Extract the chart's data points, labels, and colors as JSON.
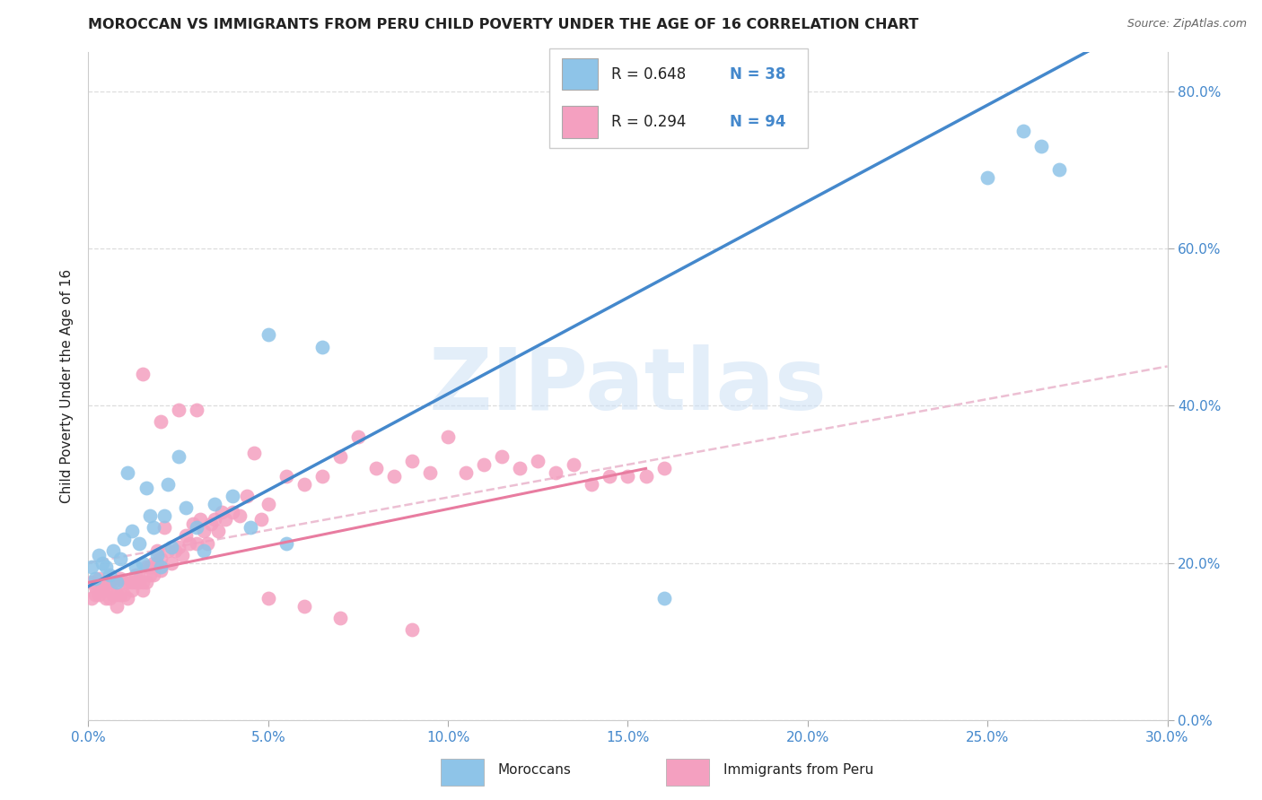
{
  "title": "MOROCCAN VS IMMIGRANTS FROM PERU CHILD POVERTY UNDER THE AGE OF 16 CORRELATION CHART",
  "source": "Source: ZipAtlas.com",
  "ylabel": "Child Poverty Under the Age of 16",
  "blue_color": "#8ec4e8",
  "pink_color": "#f4a0c0",
  "trendline_blue": "#4488cc",
  "trendline_pink": "#e87ca0",
  "trendline_dashed_color": "#e8b0c8",
  "watermark": "ZIPatlas",
  "watermark_color": "#cce0f5",
  "text_blue": "#4488cc",
  "text_dark": "#222222",
  "xmin": 0.0,
  "xmax": 0.3,
  "ymin": 0.0,
  "ymax": 0.85,
  "blue_scatter_x": [
    0.001,
    0.002,
    0.003,
    0.004,
    0.005,
    0.006,
    0.007,
    0.008,
    0.009,
    0.01,
    0.011,
    0.012,
    0.013,
    0.014,
    0.015,
    0.016,
    0.017,
    0.018,
    0.019,
    0.02,
    0.021,
    0.022,
    0.023,
    0.025,
    0.027,
    0.03,
    0.032,
    0.035,
    0.04,
    0.045,
    0.05,
    0.055,
    0.065,
    0.16,
    0.25,
    0.26,
    0.265,
    0.27
  ],
  "blue_scatter_y": [
    0.195,
    0.18,
    0.21,
    0.2,
    0.195,
    0.185,
    0.215,
    0.175,
    0.205,
    0.23,
    0.315,
    0.24,
    0.195,
    0.225,
    0.2,
    0.295,
    0.26,
    0.245,
    0.21,
    0.195,
    0.26,
    0.3,
    0.22,
    0.335,
    0.27,
    0.245,
    0.215,
    0.275,
    0.285,
    0.245,
    0.49,
    0.225,
    0.475,
    0.155,
    0.69,
    0.75,
    0.73,
    0.7
  ],
  "pink_scatter_x": [
    0.001,
    0.001,
    0.002,
    0.002,
    0.003,
    0.003,
    0.004,
    0.004,
    0.005,
    0.005,
    0.006,
    0.006,
    0.007,
    0.007,
    0.008,
    0.008,
    0.009,
    0.009,
    0.01,
    0.01,
    0.011,
    0.011,
    0.012,
    0.012,
    0.013,
    0.013,
    0.014,
    0.014,
    0.015,
    0.015,
    0.016,
    0.016,
    0.017,
    0.017,
    0.018,
    0.018,
    0.019,
    0.019,
    0.02,
    0.02,
    0.021,
    0.022,
    0.023,
    0.024,
    0.025,
    0.026,
    0.027,
    0.028,
    0.029,
    0.03,
    0.031,
    0.032,
    0.033,
    0.034,
    0.035,
    0.036,
    0.037,
    0.038,
    0.04,
    0.042,
    0.044,
    0.046,
    0.048,
    0.05,
    0.055,
    0.06,
    0.065,
    0.07,
    0.075,
    0.08,
    0.085,
    0.09,
    0.095,
    0.1,
    0.105,
    0.11,
    0.115,
    0.12,
    0.125,
    0.13,
    0.135,
    0.14,
    0.145,
    0.15,
    0.155,
    0.16,
    0.015,
    0.02,
    0.025,
    0.03,
    0.05,
    0.06,
    0.07,
    0.09
  ],
  "pink_scatter_y": [
    0.175,
    0.155,
    0.17,
    0.16,
    0.18,
    0.16,
    0.165,
    0.17,
    0.165,
    0.155,
    0.175,
    0.155,
    0.175,
    0.16,
    0.16,
    0.145,
    0.18,
    0.16,
    0.175,
    0.16,
    0.175,
    0.155,
    0.175,
    0.165,
    0.185,
    0.175,
    0.18,
    0.175,
    0.175,
    0.165,
    0.195,
    0.175,
    0.195,
    0.185,
    0.2,
    0.185,
    0.215,
    0.2,
    0.205,
    0.19,
    0.245,
    0.215,
    0.2,
    0.215,
    0.22,
    0.21,
    0.235,
    0.225,
    0.25,
    0.225,
    0.255,
    0.24,
    0.225,
    0.25,
    0.255,
    0.24,
    0.265,
    0.255,
    0.265,
    0.26,
    0.285,
    0.34,
    0.255,
    0.275,
    0.31,
    0.3,
    0.31,
    0.335,
    0.36,
    0.32,
    0.31,
    0.33,
    0.315,
    0.36,
    0.315,
    0.325,
    0.335,
    0.32,
    0.33,
    0.315,
    0.325,
    0.3,
    0.31,
    0.31,
    0.31,
    0.32,
    0.44,
    0.38,
    0.395,
    0.395,
    0.155,
    0.145,
    0.13,
    0.115
  ],
  "pink_trendline_xmax": 0.155,
  "blue_trendline_intercept": 0.17,
  "blue_trendline_slope": 2.45
}
